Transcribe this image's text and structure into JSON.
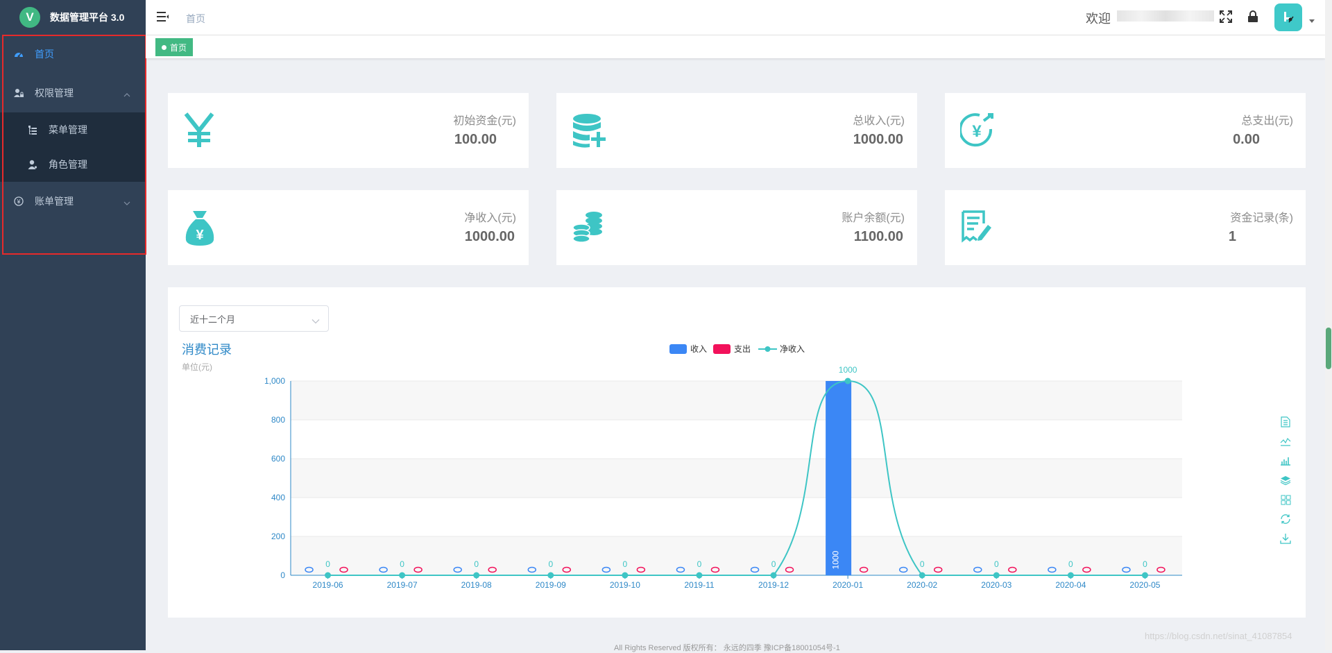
{
  "app": {
    "title": "数据管理平台 3.0",
    "logo_letter": "V"
  },
  "sidebar": {
    "items": [
      {
        "label": "首页",
        "icon": "dashboard-icon",
        "active": true
      },
      {
        "label": "权限管理",
        "icon": "user-lock-icon",
        "expanded": true,
        "children": [
          {
            "label": "菜单管理",
            "icon": "tree-icon"
          },
          {
            "label": "角色管理",
            "icon": "user-icon"
          }
        ]
      },
      {
        "label": "账单管理",
        "icon": "coin-icon",
        "expanded": false
      }
    ]
  },
  "header": {
    "breadcrumb": "首页",
    "welcome": "欢迎",
    "accent": "#3fc9c9"
  },
  "tags": {
    "active_tag": "首页",
    "color": "#42b983"
  },
  "cards": [
    {
      "label": "初始资金(元)",
      "value": "100.00",
      "icon": "yen-icon"
    },
    {
      "label": "总收入(元)",
      "value": "1000.00",
      "icon": "coin-stack-plus-icon"
    },
    {
      "label": "总支出(元)",
      "value": "0.00",
      "icon": "yen-out-icon"
    },
    {
      "label": "净收入(元)",
      "value": "1000.00",
      "icon": "money-bag-icon"
    },
    {
      "label": "账户余额(元)",
      "value": "1100.00",
      "icon": "coins-icon"
    },
    {
      "label": "资金记录(条)",
      "value": "1",
      "icon": "receipt-icon"
    }
  ],
  "filter": {
    "selected": "近十二个月"
  },
  "chart_data": {
    "type": "bar",
    "title": "消费记录",
    "subtitle": "单位(元)",
    "categories": [
      "2019-06",
      "2019-07",
      "2019-08",
      "2019-09",
      "2019-10",
      "2019-11",
      "2019-12",
      "2020-01",
      "2020-02",
      "2020-03",
      "2020-04",
      "2020-05"
    ],
    "series": [
      {
        "name": "收入",
        "type": "bar",
        "color": "#3b87f5",
        "values": [
          0,
          0,
          0,
          0,
          0,
          0,
          0,
          1000,
          0,
          0,
          0,
          0
        ]
      },
      {
        "name": "支出",
        "type": "bar",
        "color": "#f2125b",
        "values": [
          0,
          0,
          0,
          0,
          0,
          0,
          0,
          0,
          0,
          0,
          0,
          0
        ]
      },
      {
        "name": "净收入",
        "type": "line",
        "smooth": true,
        "color": "#3ec5c5",
        "values": [
          0,
          0,
          0,
          0,
          0,
          0,
          0,
          1000,
          0,
          0,
          0,
          0
        ]
      }
    ],
    "ylim": [
      0,
      1000
    ],
    "yticks": [
      "0",
      "200",
      "400",
      "600",
      "800",
      "1,000"
    ],
    "grid": true,
    "legend_position": "top-center"
  },
  "toolbox": [
    "data-view-icon",
    "line-switch-icon",
    "bar-switch-icon",
    "stack-icon",
    "tiled-icon",
    "restore-icon",
    "save-image-icon"
  ],
  "footer": {
    "text": "All Rights Reserved 版权所有： 永远的四季 豫ICP备18001054号-1"
  },
  "watermark": "https://blog.csdn.net/sinat_41087854"
}
